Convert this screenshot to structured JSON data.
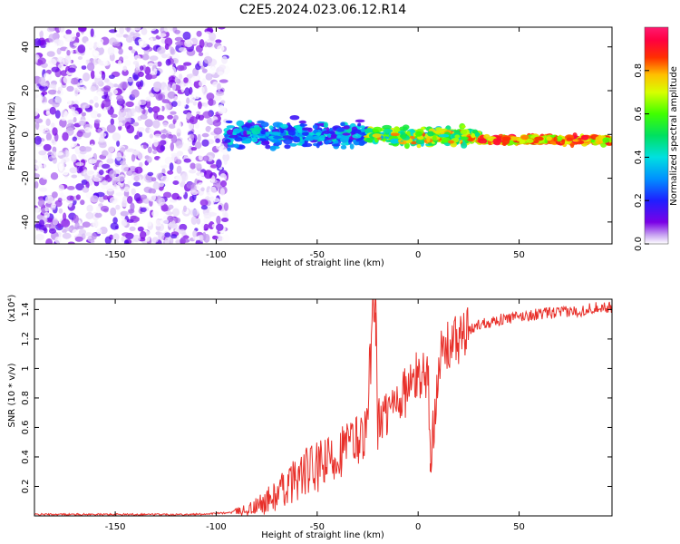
{
  "figure_title": "C2E5.2024.023.06.12.R14",
  "colors": {
    "line": "#e8302a",
    "axis": "#000000",
    "background": "#ffffff"
  },
  "chart_data": [
    {
      "type": "heatmap",
      "title": "C2E5.2024.023.06.12.R14",
      "xlabel": "Height of straight line (km)",
      "ylabel": "Frequency (Hz)",
      "xlim": [
        -190,
        96
      ],
      "ylim": [
        -50,
        49
      ],
      "x_ticks": [
        -150,
        -100,
        -50,
        0,
        50
      ],
      "y_ticks": [
        -40,
        -20,
        0,
        20,
        40
      ],
      "colorbar": {
        "label": "Normalized spectral amplitude",
        "range": [
          0,
          1
        ],
        "ticks": [
          0.0,
          0.2,
          0.4,
          0.6,
          0.8
        ],
        "colormap": "rainbow (white-violet-blue-cyan-green-yellow-red-magenta)"
      },
      "description_regions": [
        {
          "x_range": [
            -190,
            -95
          ],
          "freq_range": [
            -50,
            49
          ],
          "amplitude": [
            0.0,
            0.15
          ]
        },
        {
          "x_range": [
            -95,
            -25
          ],
          "freq_range": [
            -8,
            8
          ],
          "amplitude": [
            0.1,
            0.45
          ]
        },
        {
          "x_range": [
            -25,
            30
          ],
          "freq_range": [
            -6,
            4
          ],
          "amplitude": [
            0.3,
            0.85
          ]
        },
        {
          "x_range": [
            30,
            96
          ],
          "freq_range": [
            -5,
            0
          ],
          "amplitude": [
            0.6,
            0.95
          ]
        }
      ]
    },
    {
      "type": "line",
      "xlabel": "Height of straight line (km)",
      "ylabel": "SNR (10 * v/v)",
      "y_multiplier": "(x10⁴)",
      "xlim": [
        -190,
        96
      ],
      "ylim": [
        0,
        1.47
      ],
      "x_ticks": [
        -150,
        -100,
        -50,
        0,
        50
      ],
      "y_ticks": [
        0.2,
        0.4,
        0.6,
        0.8,
        1.0,
        1.2,
        1.4
      ],
      "series": [
        {
          "x": [
            -190,
            -150,
            -110,
            -95,
            -85,
            -80,
            -75,
            -70,
            -65,
            -60,
            -55,
            -50,
            -45,
            -40,
            -35,
            -30,
            -25,
            -21,
            -20,
            -15,
            -10,
            -5,
            0,
            5,
            6,
            10,
            15,
            20,
            25,
            30,
            40,
            50,
            60,
            70,
            80,
            90,
            96
          ],
          "y": [
            0.01,
            0.01,
            0.01,
            0.02,
            0.04,
            0.06,
            0.1,
            0.14,
            0.2,
            0.26,
            0.3,
            0.32,
            0.36,
            0.42,
            0.48,
            0.52,
            0.58,
            1.38,
            0.62,
            0.7,
            0.8,
            0.86,
            0.95,
            0.98,
            0.3,
            1.05,
            1.15,
            1.2,
            1.25,
            1.3,
            1.33,
            1.35,
            1.37,
            1.38,
            1.39,
            1.42,
            1.41
          ]
        }
      ]
    }
  ]
}
